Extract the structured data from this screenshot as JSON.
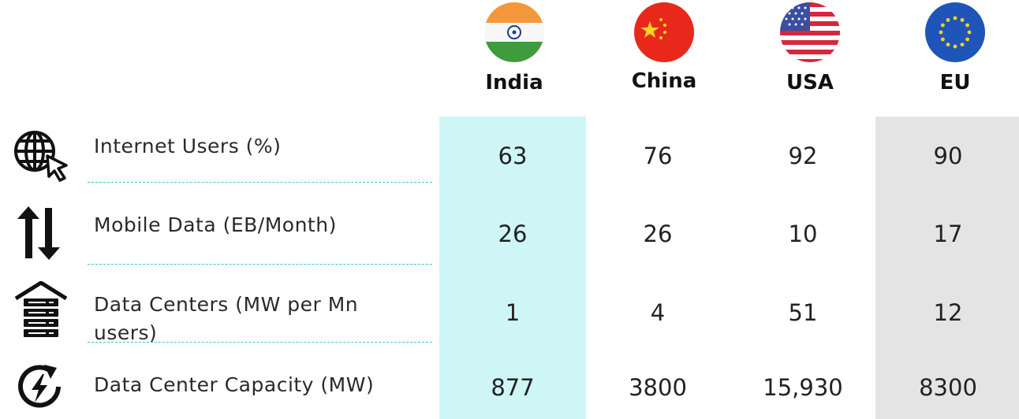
{
  "chart_data": {
    "type": "table",
    "columns": [
      "India",
      "China",
      "USA",
      "EU"
    ],
    "rows": [
      {
        "label": "Internet Users (%)",
        "icon": "globe-cursor-icon",
        "values": [
          "63",
          "76",
          "92",
          "90"
        ]
      },
      {
        "label": "Mobile Data (EB/Month)",
        "icon": "up-down-arrows-icon",
        "values": [
          "26",
          "26",
          "10",
          "17"
        ]
      },
      {
        "label": "Data Centers (MW per Mn users)",
        "icon": "server-house-icon",
        "values": [
          "1",
          "4",
          "51",
          "12"
        ]
      },
      {
        "label": "Data Center Capacity (MW)",
        "icon": "refresh-bolt-icon",
        "values": [
          "877",
          "3800",
          "15,930",
          "8300"
        ]
      }
    ],
    "flags": [
      "india-flag-icon",
      "china-flag-icon",
      "usa-flag-icon",
      "eu-flag-icon"
    ],
    "highlight_colors": {
      "India": "#cff6f6",
      "EU": "#e4e4e4"
    }
  }
}
